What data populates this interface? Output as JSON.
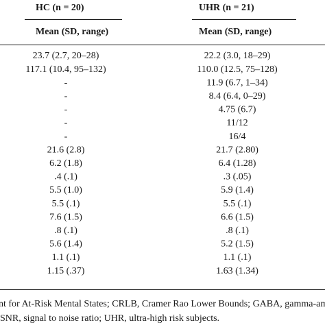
{
  "header": {
    "hc": "HC (n = 20)",
    "uhr": "UHR (n = 21)"
  },
  "subheader": {
    "hc": "Mean (SD, range)",
    "uhr": "Mean (SD, range)"
  },
  "table": {
    "rows": [
      [
        "23.7 (2.7, 20–28)",
        "22.2 (3.0, 18–29)"
      ],
      [
        "117.1 (10.4, 95–132)",
        "110.0 (12.5, 75–128)"
      ],
      [
        "-",
        "11.9 (6.7, 1–34)"
      ],
      [
        "-",
        "8.4 (6.4, 0–29)"
      ],
      [
        "-",
        "4.75 (6.7)"
      ],
      [
        "-",
        "11/12"
      ],
      [
        "-",
        "16/4"
      ],
      [
        "21.6 (2.8)",
        "21.7 (2.80)"
      ],
      [
        "6.2 (1.8)",
        "6.4 (1.28)"
      ],
      [
        ".4 (.1)",
        ".3 (.05)"
      ],
      [
        "5.5 (1.0)",
        "5.9 (1.4)"
      ],
      [
        "5.5 (.1)",
        "5.5 (.1)"
      ],
      [
        "7.6 (1.5)",
        "6.6 (1.5)"
      ],
      [
        ".8 (.1)",
        ".8 (.1)"
      ],
      [
        "5.6 (1.4)",
        "5.2 (1.5)"
      ],
      [
        "1.1 (.1)",
        "1.1 (.1)"
      ],
      [
        "1.15 (.37)",
        "1.63 (1.34)"
      ]
    ]
  },
  "footnote": [
    "nt for At-Risk Mental States; CRLB, Cramer Rao Lower Bounds; GABA, gamma-am",
    "SNR, signal to noise ratio; UHR, ultra-high risk subjects."
  ]
}
